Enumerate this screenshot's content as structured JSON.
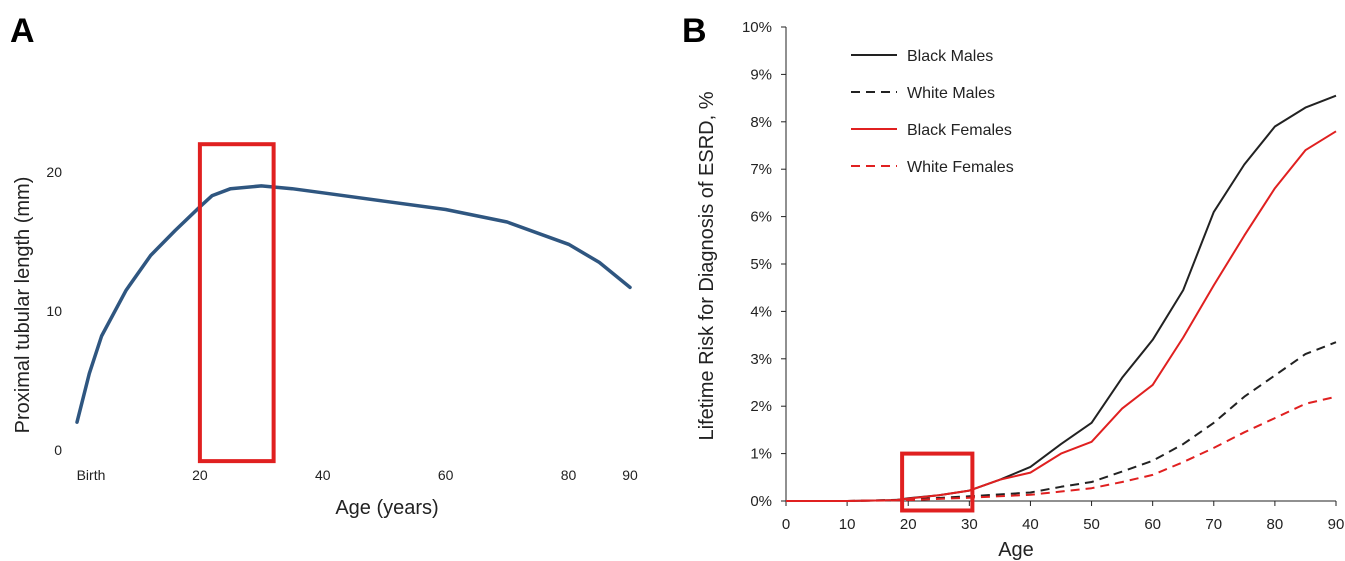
{
  "chart_data": [
    {
      "panel": "A",
      "type": "line",
      "xlabel": "Age (years)",
      "ylabel": "Proximal tubular length (mm)",
      "xlim": [
        0,
        90
      ],
      "ylim": [
        0,
        20
      ],
      "x_ticks": [
        {
          "value": 0,
          "label": "Birth"
        },
        {
          "value": 20,
          "label": "20"
        },
        {
          "value": 40,
          "label": "40"
        },
        {
          "value": 60,
          "label": "60"
        },
        {
          "value": 80,
          "label": "80"
        },
        {
          "value": 90,
          "label": "90"
        }
      ],
      "y_ticks": [
        0,
        10,
        20
      ],
      "series": [
        {
          "color": "#2f5680",
          "dash": false,
          "points": [
            [
              0,
              2.0
            ],
            [
              2,
              5.5
            ],
            [
              4,
              8.2
            ],
            [
              8,
              11.5
            ],
            [
              12,
              14.0
            ],
            [
              16,
              15.8
            ],
            [
              20,
              17.5
            ],
            [
              22,
              18.3
            ],
            [
              25,
              18.8
            ],
            [
              30,
              19.0
            ],
            [
              35,
              18.8
            ],
            [
              40,
              18.5
            ],
            [
              50,
              17.9
            ],
            [
              60,
              17.3
            ],
            [
              70,
              16.4
            ],
            [
              80,
              14.8
            ],
            [
              85,
              13.5
            ],
            [
              90,
              11.7
            ]
          ]
        }
      ],
      "highlight": {
        "x_from": 20,
        "x_to": 32,
        "y_from": -0.8,
        "y_to": 22.0,
        "color": "#e02020"
      }
    },
    {
      "panel": "B",
      "type": "line",
      "xlabel": "Age",
      "ylabel": "Lifetime Risk for Diagnosis of ESRD, %",
      "xlim": [
        0,
        90
      ],
      "ylim": [
        0,
        10
      ],
      "x_ticks": [
        0,
        10,
        20,
        30,
        40,
        50,
        60,
        70,
        80,
        90
      ],
      "y_ticks": [
        "0%",
        "1%",
        "2%",
        "3%",
        "4%",
        "5%",
        "6%",
        "7%",
        "8%",
        "9%",
        "10%"
      ],
      "legend_position": "top-left",
      "series": [
        {
          "name": "Black Males",
          "color": "#222222",
          "dash": false,
          "points": [
            [
              0,
              0
            ],
            [
              10,
              0
            ],
            [
              18,
              0.02
            ],
            [
              20,
              0.06
            ],
            [
              25,
              0.12
            ],
            [
              30,
              0.22
            ],
            [
              35,
              0.45
            ],
            [
              40,
              0.72
            ],
            [
              45,
              1.2
            ],
            [
              50,
              1.65
            ],
            [
              55,
              2.6
            ],
            [
              60,
              3.4
            ],
            [
              65,
              4.45
            ],
            [
              70,
              6.1
            ],
            [
              75,
              7.1
            ],
            [
              80,
              7.9
            ],
            [
              85,
              8.3
            ],
            [
              90,
              8.55
            ]
          ]
        },
        {
          "name": "White Males",
          "color": "#222222",
          "dash": true,
          "points": [
            [
              0,
              0
            ],
            [
              10,
              0
            ],
            [
              20,
              0.03
            ],
            [
              30,
              0.1
            ],
            [
              40,
              0.18
            ],
            [
              45,
              0.3
            ],
            [
              50,
              0.4
            ],
            [
              55,
              0.62
            ],
            [
              60,
              0.85
            ],
            [
              65,
              1.2
            ],
            [
              70,
              1.65
            ],
            [
              75,
              2.2
            ],
            [
              80,
              2.65
            ],
            [
              85,
              3.1
            ],
            [
              90,
              3.35
            ]
          ]
        },
        {
          "name": "Black Females",
          "color": "#e02020",
          "dash": false,
          "points": [
            [
              0,
              0
            ],
            [
              10,
              0
            ],
            [
              18,
              0.02
            ],
            [
              20,
              0.05
            ],
            [
              25,
              0.12
            ],
            [
              30,
              0.22
            ],
            [
              35,
              0.45
            ],
            [
              40,
              0.6
            ],
            [
              45,
              1.0
            ],
            [
              50,
              1.25
            ],
            [
              55,
              1.95
            ],
            [
              60,
              2.45
            ],
            [
              65,
              3.45
            ],
            [
              70,
              4.55
            ],
            [
              75,
              5.6
            ],
            [
              80,
              6.6
            ],
            [
              85,
              7.4
            ],
            [
              90,
              7.8
            ]
          ]
        },
        {
          "name": "White Females",
          "color": "#e02020",
          "dash": true,
          "points": [
            [
              0,
              0
            ],
            [
              10,
              0
            ],
            [
              20,
              0.02
            ],
            [
              30,
              0.07
            ],
            [
              40,
              0.13
            ],
            [
              45,
              0.2
            ],
            [
              50,
              0.27
            ],
            [
              55,
              0.4
            ],
            [
              60,
              0.55
            ],
            [
              65,
              0.82
            ],
            [
              70,
              1.12
            ],
            [
              75,
              1.45
            ],
            [
              80,
              1.75
            ],
            [
              85,
              2.05
            ],
            [
              90,
              2.2
            ]
          ]
        }
      ],
      "highlight": {
        "x_from": 19,
        "x_to": 30.5,
        "y_from": -0.2,
        "y_to": 1.0,
        "color": "#e02020"
      }
    }
  ],
  "panel_labels": {
    "a": "A",
    "b": "B"
  }
}
